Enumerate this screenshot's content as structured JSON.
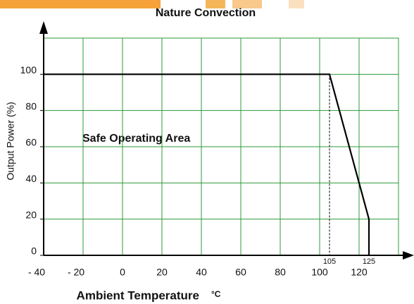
{
  "chart_data": {
    "type": "line",
    "title": "Nature Convection",
    "xlabel": "Ambient Temperature",
    "xunit": "°C",
    "ylabel": "Output Power (%)",
    "annotation": "Safe Operating Area",
    "x": [
      -40,
      105,
      125,
      125
    ],
    "series": [
      {
        "color": "#000000",
        "values": [
          100,
          100,
          20,
          0
        ]
      }
    ],
    "xlim": [
      -40,
      140
    ],
    "ylim": [
      0,
      120
    ],
    "xticks": [
      {
        "value": -40,
        "label": "- 40"
      },
      {
        "value": -20,
        "label": "- 20"
      },
      0,
      20,
      40,
      60,
      80,
      100,
      120
    ],
    "yticks": [
      0,
      20,
      40,
      60,
      80,
      100
    ],
    "marker_ticks": [
      105,
      125
    ],
    "grid": true,
    "grid_color": "#2e9a3a"
  }
}
